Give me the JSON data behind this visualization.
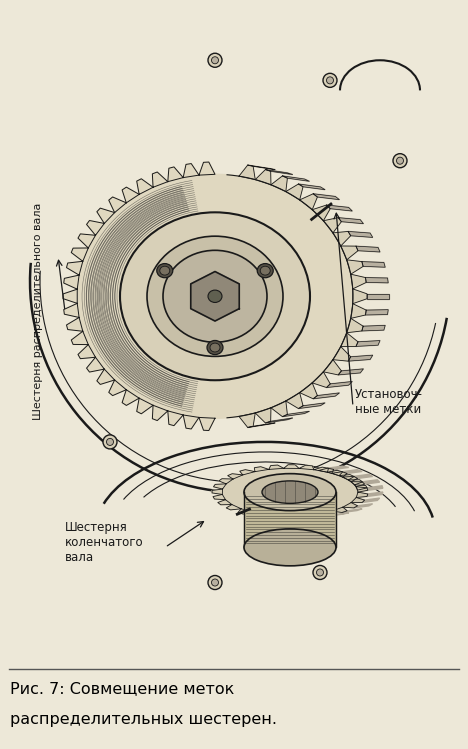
{
  "bg_color": "#ede8d8",
  "line_color": "#1a1a1a",
  "caption_line1": "Рис. 7: Совмещение меток",
  "caption_line2": "распределительных шестерен.",
  "label_cam": "Шестерня распределительного вала",
  "label_crank": "Шестерня\nколенчатого\nвала",
  "label_marks": "Установоч-\nные метки",
  "figsize": [
    4.68,
    7.49
  ],
  "dpi": 100,
  "caption_bg": "#f5f5f5"
}
